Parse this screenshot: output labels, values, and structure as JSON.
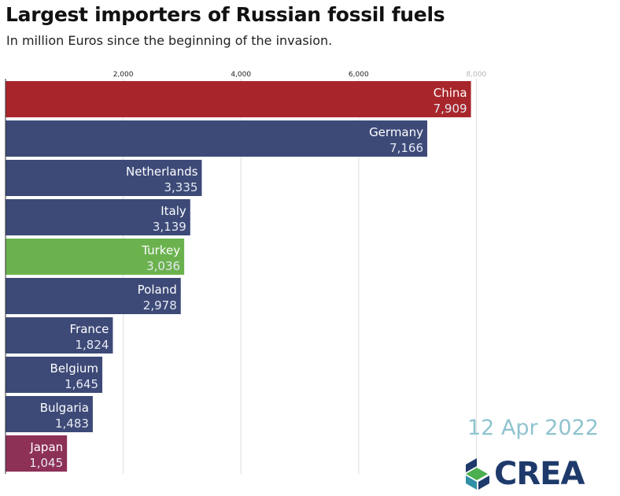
{
  "header": {
    "title": "Largest importers of Russian fossil fuels",
    "subtitle": "In million Euros since the beginning of the invasion."
  },
  "date_label": "12 Apr 2022",
  "logo": {
    "text": "CREA",
    "icon": "crea-logo-icon"
  },
  "colors": {
    "default": "#3d4a78",
    "China": "#a8262b",
    "Turkey": "#6bb24f",
    "Japan": "#8e3157",
    "grid": "#dcdcdc",
    "date": "#8fc3d0",
    "logo_navy": "#1d3a6b",
    "logo_green": "#4caf50",
    "logo_teal": "#2f8fa3"
  },
  "chart_data": {
    "type": "bar",
    "orientation": "horizontal",
    "title": "Largest importers of Russian fossil fuels",
    "subtitle": "In million Euros since the beginning of the invasion.",
    "categories": [
      "China",
      "Germany",
      "Netherlands",
      "Italy",
      "Turkey",
      "Poland",
      "France",
      "Belgium",
      "Bulgaria",
      "Japan"
    ],
    "values": [
      7909,
      7166,
      3335,
      3139,
      3036,
      2978,
      1824,
      1645,
      1483,
      1045
    ],
    "value_labels": [
      "7,909",
      "7,166",
      "3,335",
      "3,139",
      "3,036",
      "2,978",
      "1,824",
      "1,645",
      "1,483",
      "1,045"
    ],
    "xticks": [
      2000,
      4000,
      6000,
      8000
    ],
    "xtick_labels": [
      "2,000",
      "4,000",
      "6,000",
      "8,000"
    ],
    "xlim": [
      0,
      8000
    ],
    "grid": true,
    "axis_position": "top"
  }
}
